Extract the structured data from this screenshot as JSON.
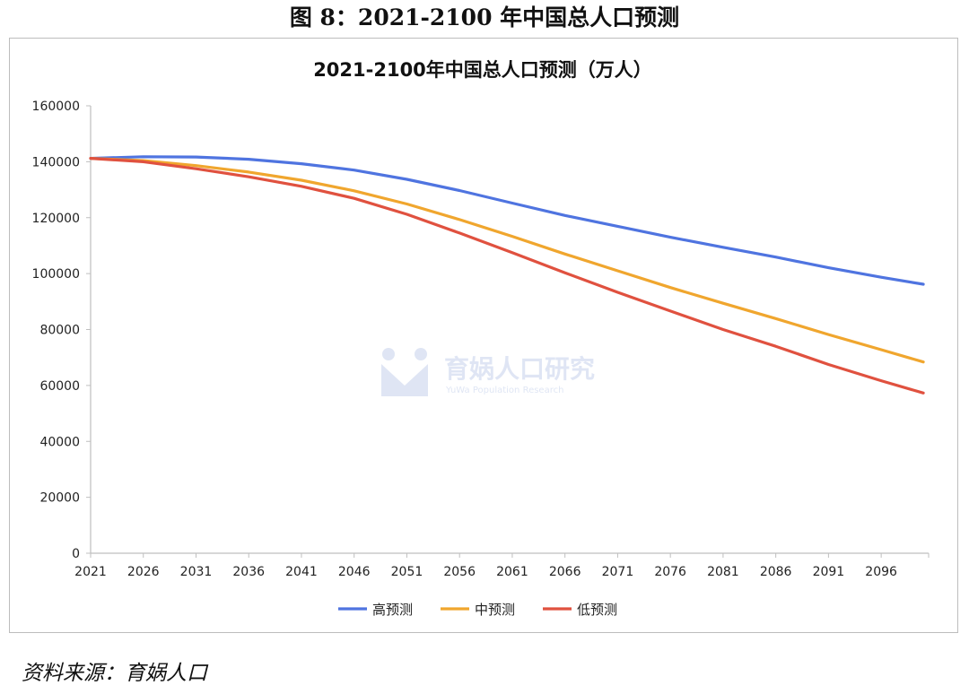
{
  "figure_title": "图 8：2021-2100 年中国总人口预测",
  "source_note": "资料来源：育娲人口",
  "watermark": {
    "text": "育娲人口研究",
    "sub": "YuWa Population Research"
  },
  "colors": {
    "high": "#4f74e0",
    "mid": "#f0a62e",
    "low": "#e0513f"
  },
  "chart_data": {
    "type": "line",
    "title": "2021-2100年中国总人口预测（万人）",
    "xlabel": "",
    "ylabel": "",
    "ylim": [
      0,
      160000
    ],
    "y_ticks": [
      0,
      20000,
      40000,
      60000,
      80000,
      100000,
      120000,
      140000,
      160000
    ],
    "x_ticks": [
      2021,
      2026,
      2031,
      2036,
      2041,
      2046,
      2051,
      2056,
      2061,
      2066,
      2071,
      2076,
      2081,
      2086,
      2091,
      2096
    ],
    "x": [
      2021,
      2026,
      2031,
      2036,
      2041,
      2046,
      2051,
      2056,
      2061,
      2066,
      2071,
      2076,
      2081,
      2086,
      2091,
      2096,
      2100
    ],
    "grid": false,
    "legend_position": "bottom",
    "series": [
      {
        "name": "高预测",
        "color_key": "high",
        "values": [
          141200,
          141800,
          141700,
          140900,
          139300,
          137000,
          133700,
          129700,
          125200,
          120800,
          116900,
          113000,
          109400,
          105900,
          102100,
          98700,
          96200
        ]
      },
      {
        "name": "中预测",
        "color_key": "mid",
        "values": [
          141200,
          140400,
          138600,
          136300,
          133400,
          129600,
          124900,
          119300,
          113300,
          107000,
          101000,
          95000,
          89400,
          83900,
          78200,
          72800,
          68400
        ]
      },
      {
        "name": "低预测",
        "color_key": "low",
        "values": [
          141200,
          140000,
          137500,
          134600,
          131200,
          126900,
          121200,
          114500,
          107500,
          100300,
          93300,
          86600,
          80000,
          74000,
          67500,
          61700,
          57300
        ]
      }
    ]
  }
}
